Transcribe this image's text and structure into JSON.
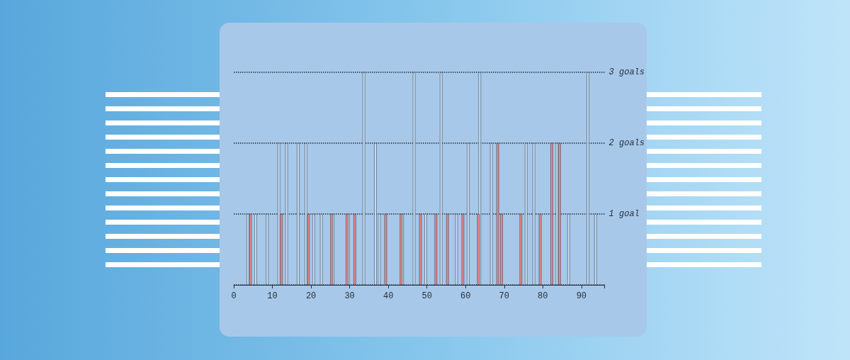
{
  "chart_data": {
    "type": "bar",
    "xlim": [
      0,
      96
    ],
    "xticks": [
      0,
      10,
      20,
      30,
      40,
      50,
      60,
      70,
      80,
      90
    ],
    "ylim": [
      0,
      3
    ],
    "yticks": [
      {
        "value": 1,
        "label": "1 goal"
      },
      {
        "value": 2,
        "label": "2 goals"
      },
      {
        "value": 3,
        "label": "3 goals"
      }
    ],
    "grid": "y",
    "series": [
      {
        "color": "#c8def3",
        "x": [
          4,
          6,
          9,
          12,
          14,
          17,
          19,
          21,
          23,
          26,
          30,
          34,
          37,
          38,
          44,
          47,
          50,
          54,
          58,
          61,
          64,
          67,
          76,
          78,
          84,
          87,
          92,
          94
        ],
        "values": [
          1,
          1,
          1,
          2,
          2,
          2,
          2,
          1,
          1,
          1,
          1,
          3,
          2,
          1,
          1,
          3,
          1,
          3,
          1,
          2,
          3,
          2,
          2,
          2,
          2,
          1,
          3,
          1
        ]
      },
      {
        "color": "#e8888a",
        "x": [
          4,
          12,
          19,
          25,
          29,
          31,
          39,
          43,
          48,
          52,
          55,
          59,
          63,
          68,
          69,
          74,
          79,
          82,
          84
        ],
        "values": [
          1,
          1,
          1,
          1,
          1,
          1,
          1,
          1,
          1,
          1,
          1,
          1,
          1,
          2,
          1,
          1,
          1,
          2,
          2
        ]
      }
    ]
  }
}
